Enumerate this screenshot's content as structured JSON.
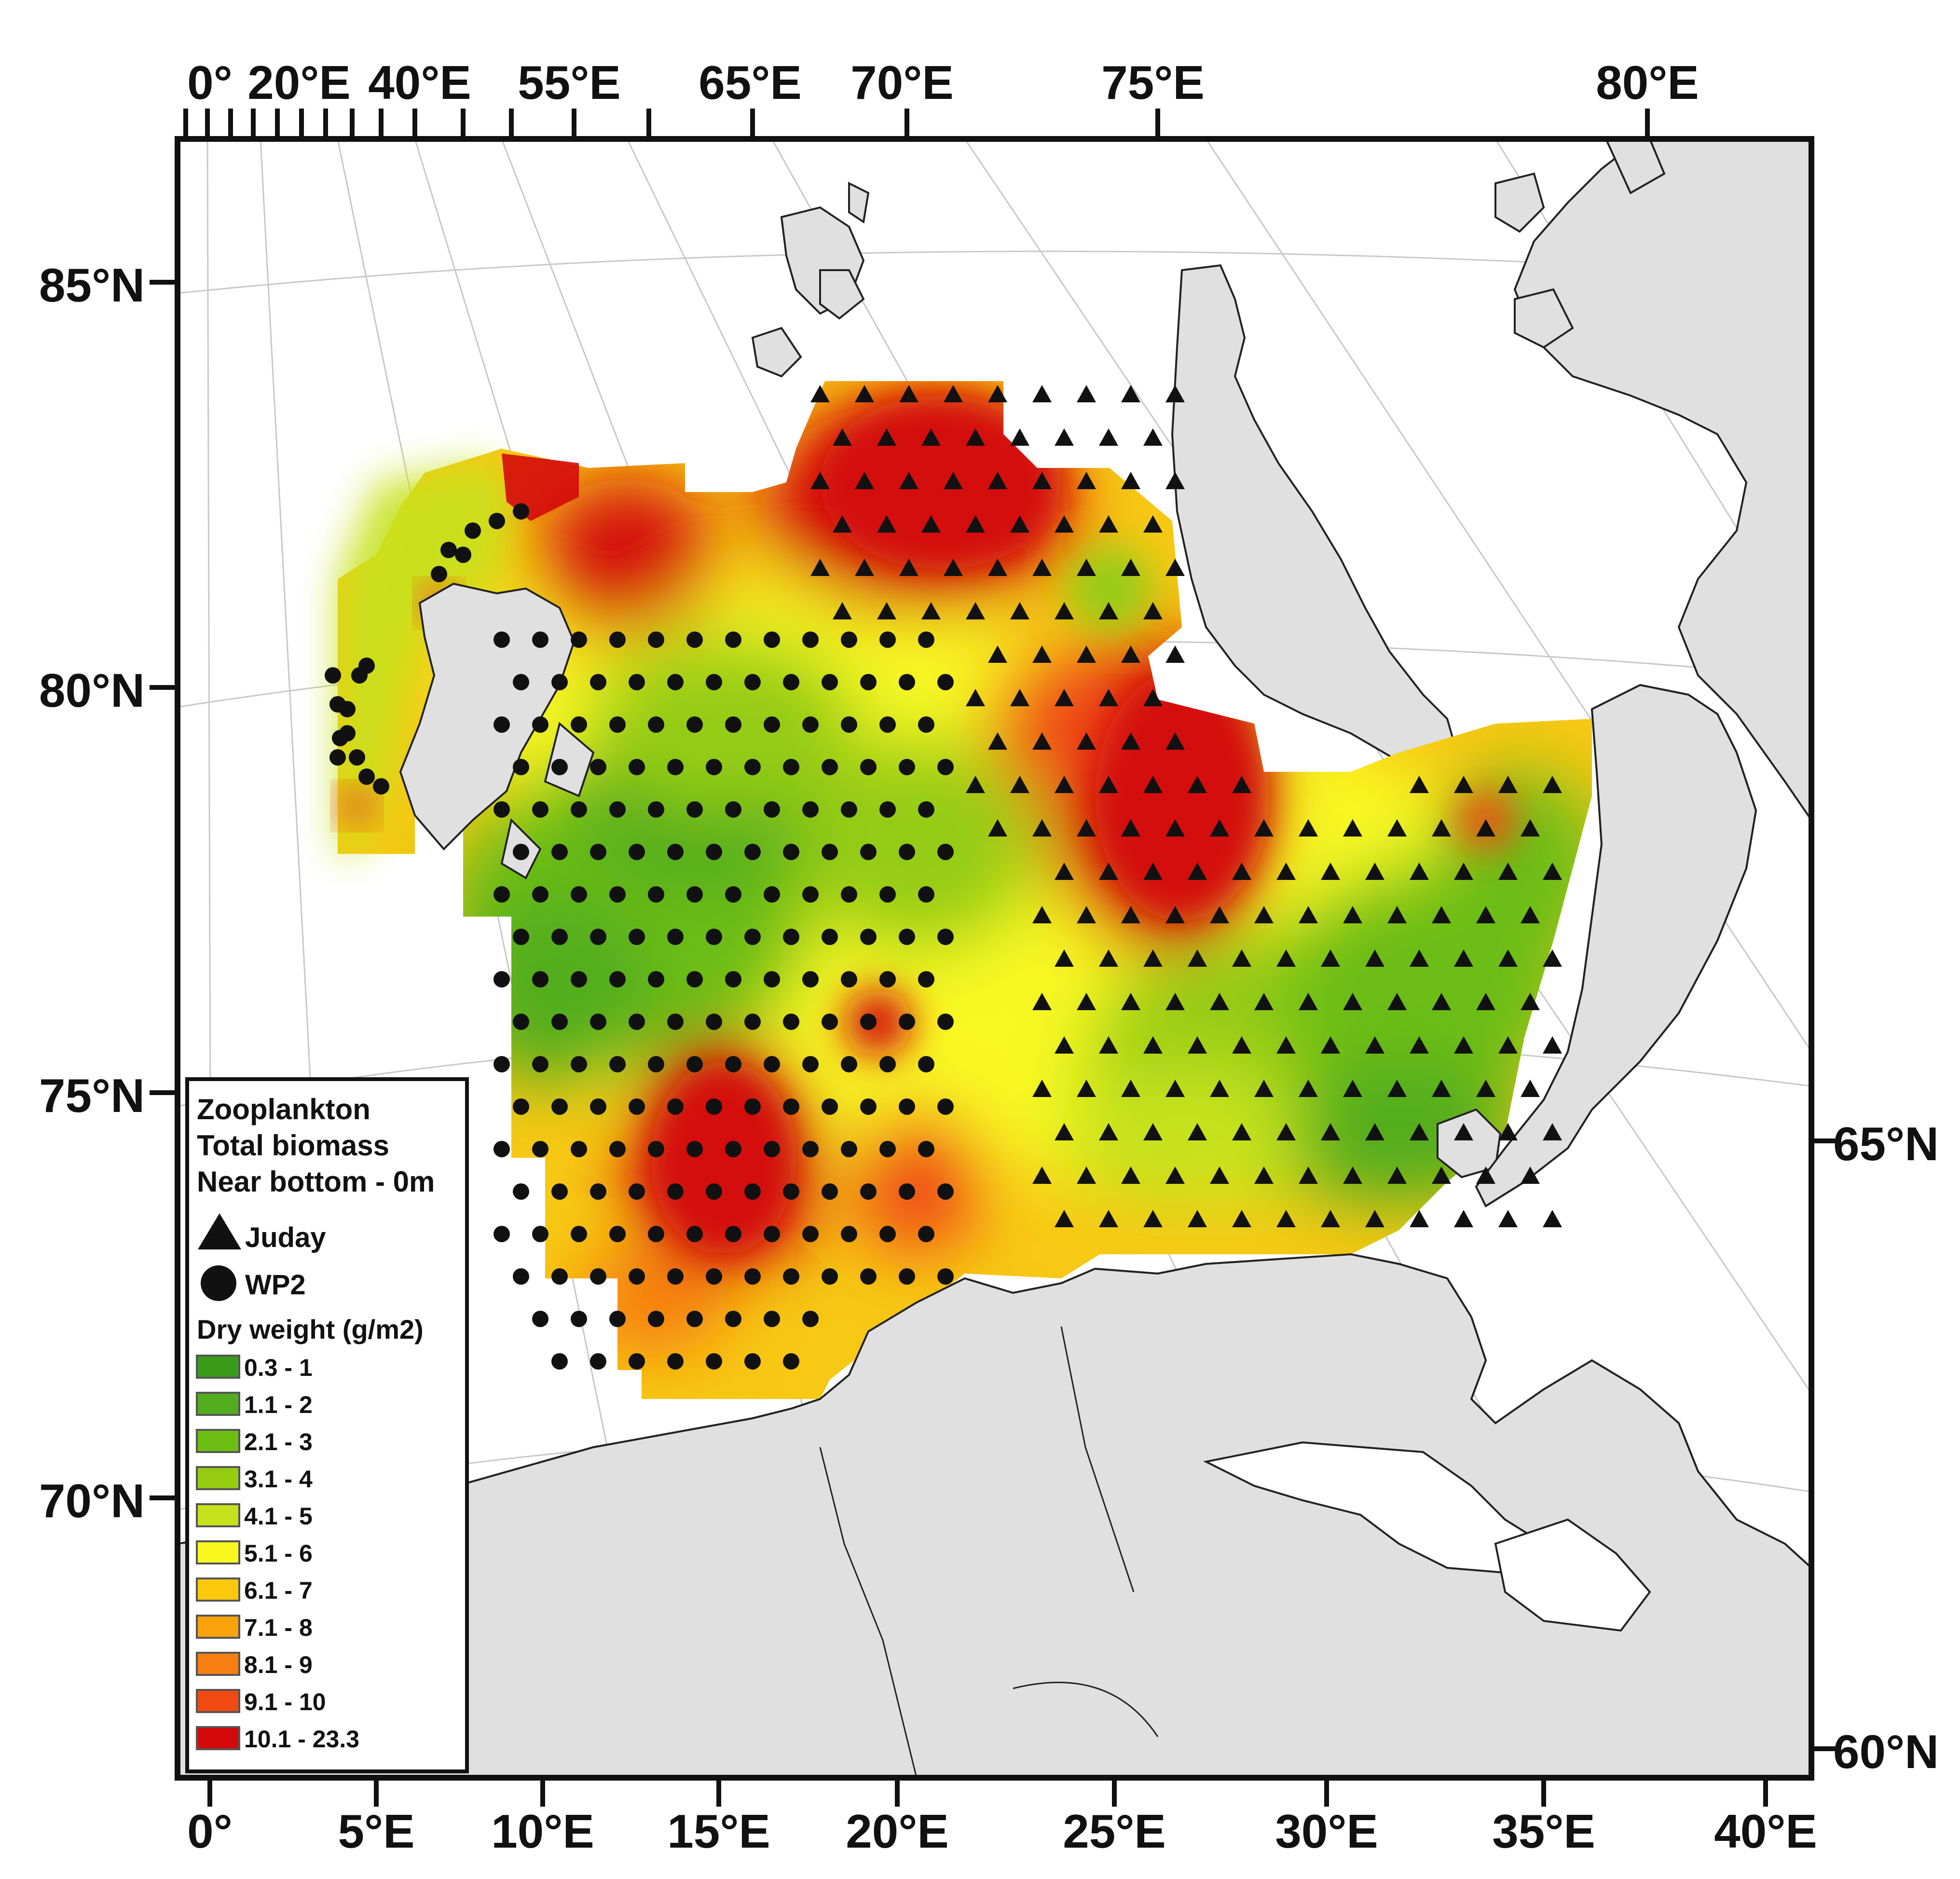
{
  "axes": {
    "top": [
      "0°",
      "20°E",
      "40°E",
      "55°E",
      "65°E",
      "70°E",
      "75°E",
      "80°E"
    ],
    "bottom": [
      "0°",
      "5°E",
      "10°E",
      "15°E",
      "20°E",
      "25°E",
      "30°E",
      "35°E",
      "40°E"
    ],
    "left": [
      "85°N",
      "80°N",
      "75°N",
      "70°N"
    ],
    "right": [
      "65°N",
      "60°N"
    ]
  },
  "legend": {
    "title_lines": [
      "Zooplankton",
      "Total biomass",
      "Near bottom - 0m"
    ],
    "gear": [
      {
        "symbol": "triangle",
        "label": "Juday"
      },
      {
        "symbol": "circle",
        "label": "WP2"
      }
    ],
    "scale_title": "Dry weight (g/m2)",
    "classes": [
      {
        "label": "0.3 - 1",
        "color": "#3a9a1a"
      },
      {
        "label": "1.1 - 2",
        "color": "#52ad1e"
      },
      {
        "label": "2.1 - 3",
        "color": "#6cbd12"
      },
      {
        "label": "3.1 - 4",
        "color": "#95cc12"
      },
      {
        "label": "4.1 - 5",
        "color": "#c6e21c"
      },
      {
        "label": "5.1 - 6",
        "color": "#f8f820"
      },
      {
        "label": "6.1 - 7",
        "color": "#fcc80c"
      },
      {
        "label": "7.1 - 8",
        "color": "#f9a20c"
      },
      {
        "label": "8.1 - 9",
        "color": "#f77e10"
      },
      {
        "label": "9.1 - 10",
        "color": "#f04a12"
      },
      {
        "label": "10.1 - 23.3",
        "color": "#d40a0a"
      }
    ]
  },
  "colors": {
    "land": "#e0e0e0",
    "sea": "#ffffff",
    "graticule": "#c8c8c8",
    "frame": "#111111"
  }
}
